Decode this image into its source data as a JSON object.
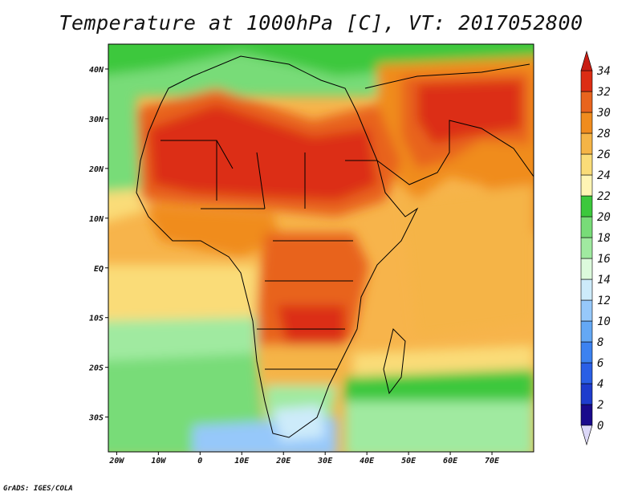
{
  "title": "Temperature at 1000hPa [C], VT: 2017052800",
  "credit": "GrADS: IGES/COLA",
  "map": {
    "type": "filled-contour-map",
    "variable": "Temperature at 1000hPa",
    "units": "C",
    "valid_time": "2017052800",
    "lon_range": [
      -22,
      80
    ],
    "lat_range": [
      -37,
      45
    ],
    "lon_ticks": [
      {
        "value": -20,
        "label": "20W"
      },
      {
        "value": -10,
        "label": "10W"
      },
      {
        "value": 0,
        "label": "0"
      },
      {
        "value": 10,
        "label": "10E"
      },
      {
        "value": 20,
        "label": "20E"
      },
      {
        "value": 30,
        "label": "30E"
      },
      {
        "value": 40,
        "label": "40E"
      },
      {
        "value": 50,
        "label": "50E"
      },
      {
        "value": 60,
        "label": "60E"
      },
      {
        "value": 70,
        "label": "70E"
      }
    ],
    "lat_ticks": [
      {
        "value": 40,
        "label": "40N"
      },
      {
        "value": 30,
        "label": "30N"
      },
      {
        "value": 20,
        "label": "20N"
      },
      {
        "value": 10,
        "label": "10N"
      },
      {
        "value": 0,
        "label": "EQ"
      },
      {
        "value": -10,
        "label": "10S"
      },
      {
        "value": -20,
        "label": "20S"
      },
      {
        "value": -30,
        "label": "30S"
      }
    ]
  },
  "colorbar": {
    "levels": [
      0,
      2,
      4,
      6,
      8,
      10,
      12,
      14,
      16,
      18,
      20,
      22,
      24,
      26,
      28,
      30,
      32,
      34
    ],
    "labels": [
      "0",
      "2",
      "4",
      "6",
      "8",
      "10",
      "12",
      "14",
      "16",
      "18",
      "20",
      "22",
      "24",
      "26",
      "28",
      "30",
      "32",
      "34"
    ],
    "colors": [
      "#1a0a8c",
      "#1e3ccd",
      "#2a5fe6",
      "#3c82f0",
      "#64a8f5",
      "#96c8fa",
      "#cdebfa",
      "#dcfadc",
      "#a0eaa0",
      "#78dc78",
      "#3cc83c",
      "#fff5b4",
      "#fadc78",
      "#f5b446",
      "#f08c1e",
      "#e8641e",
      "#dc2d14"
    ],
    "under_color": "#dcd8f8",
    "over_color": "#c81e14"
  }
}
